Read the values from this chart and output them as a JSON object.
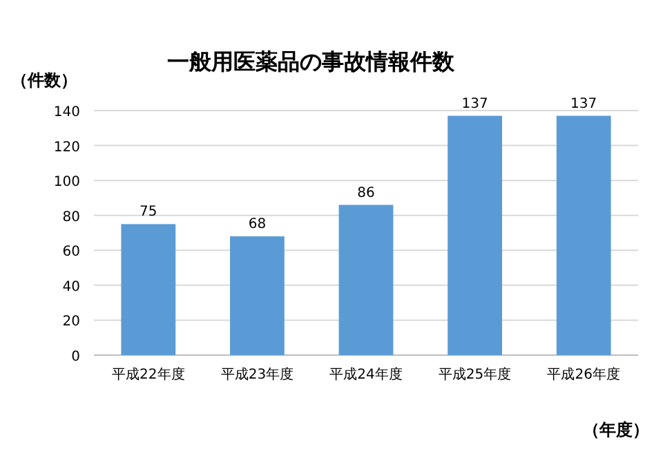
{
  "chart_data": {
    "type": "bar",
    "title": "一般用医薬品の事故情報件数",
    "ylabel": "（件数）",
    "xlabel": "（年度）",
    "categories": [
      "平成22年度",
      "平成23年度",
      "平成24年度",
      "平成25年度",
      "平成26年度"
    ],
    "values": [
      75,
      68,
      86,
      137,
      137
    ],
    "color": "#5b9bd5",
    "ylim": [
      0,
      140
    ],
    "yticks": [
      0,
      20,
      40,
      60,
      80,
      100,
      120,
      140
    ],
    "grid": "y",
    "data_labels": true
  }
}
